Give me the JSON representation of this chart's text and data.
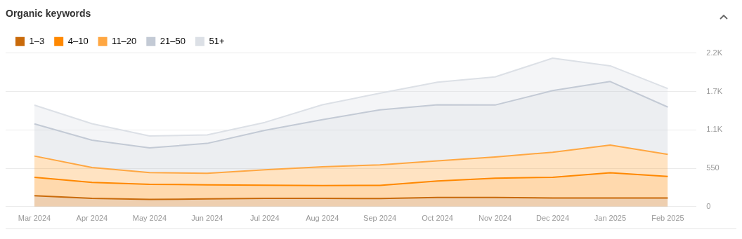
{
  "chart_data": {
    "type": "area",
    "title": "Organic keywords",
    "stacked": true,
    "grid": "y",
    "legend": "top left",
    "marker": "none",
    "categories": [
      "Mar 2024",
      "Apr 2024",
      "May 2024",
      "Jun 2024",
      "Jul 2024",
      "Aug 2024",
      "Sep 2024",
      "Oct 2024",
      "Nov 2024",
      "Dec 2024",
      "Jan 2025",
      "Feb 2025"
    ],
    "ylim": [
      0,
      2200
    ],
    "yticks": [
      0,
      550,
      {
        "value": 1100,
        "label": "1.1K"
      },
      {
        "value": 1650,
        "label": "1.7K"
      },
      {
        "value": 2200,
        "label": "2.2K"
      }
    ],
    "series": [
      {
        "name": "1–3",
        "color": "#c96a0a",
        "values": [
          157,
          119,
          103,
          111,
          119,
          119,
          116,
          131,
          131,
          123,
          123,
          123
        ]
      },
      {
        "name": "4–10",
        "color": "#ff8800",
        "values": [
          263,
          229,
          216,
          202,
          189,
          183,
          189,
          236,
          276,
          298,
          363,
          309
        ]
      },
      {
        "name": "11–20",
        "color": "#ffa742",
        "values": [
          305,
          213,
          169,
          165,
          220,
          269,
          294,
          290,
          305,
          359,
          396,
          316
        ]
      },
      {
        "name": "21–50",
        "color": "#c3cad5",
        "values": [
          461,
          391,
          353,
          428,
          564,
          675,
          788,
          802,
          744,
          883,
          911,
          679
        ]
      },
      {
        "name": "51+",
        "color": "#dce0e6",
        "values": [
          269,
          237,
          172,
          121,
          115,
          213,
          239,
          324,
          403,
          464,
          225,
          265
        ]
      }
    ]
  }
}
